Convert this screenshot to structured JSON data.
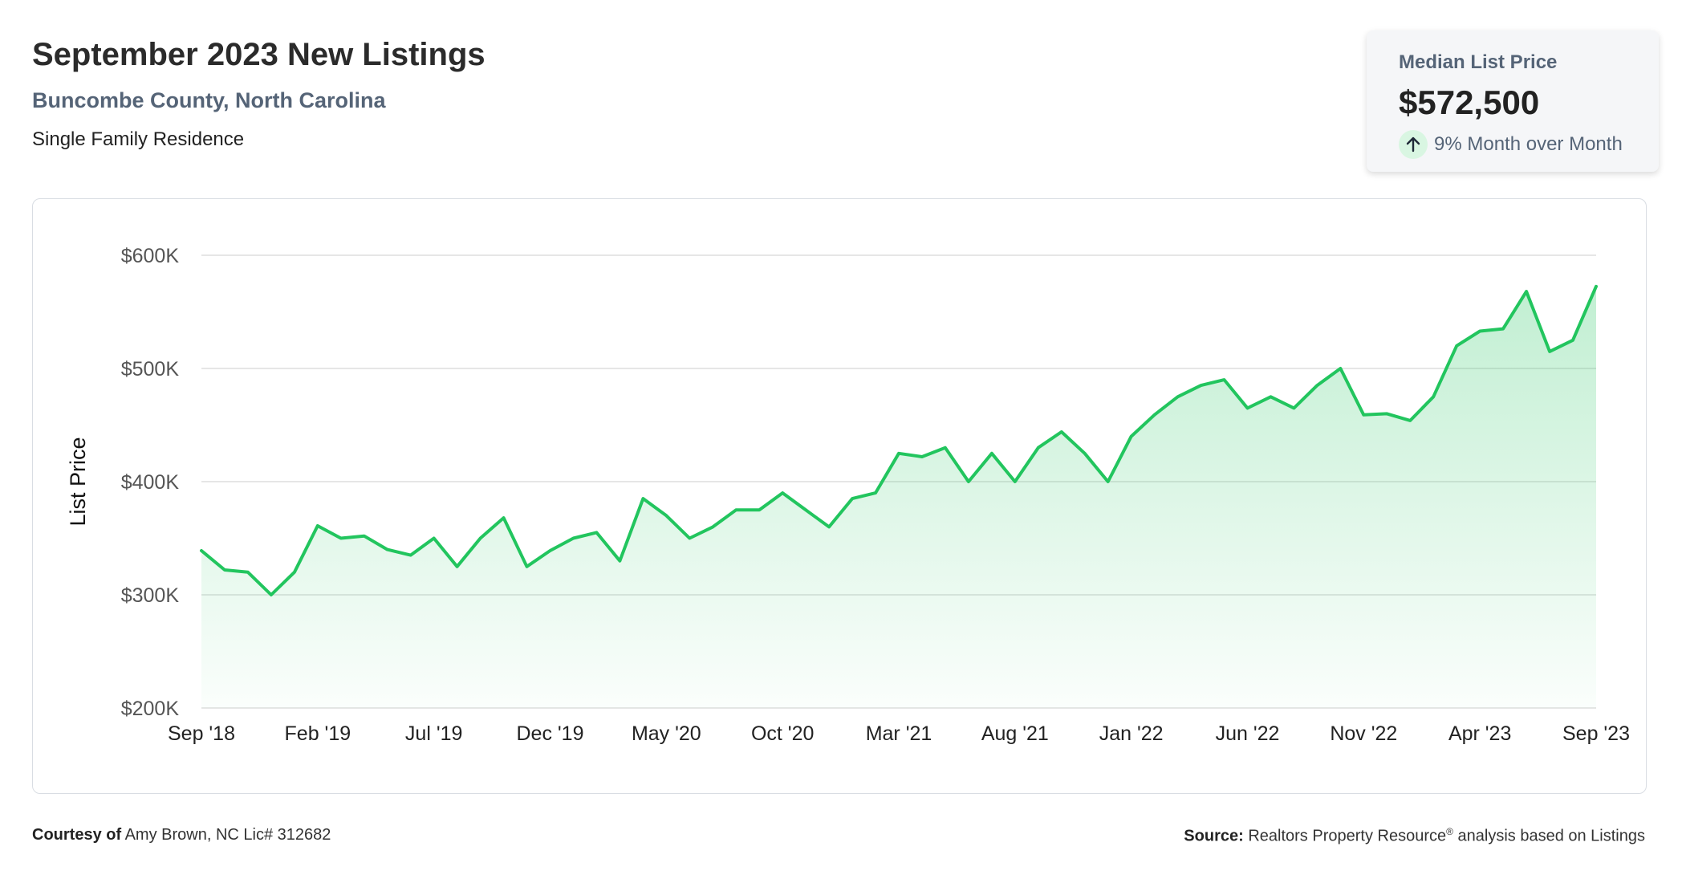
{
  "header": {
    "title": "September 2023 New Listings",
    "subtitle": "Buncombe County, North Carolina",
    "property_type": "Single Family Residence"
  },
  "kpi": {
    "label": "Median List Price",
    "value": "$572,500",
    "change": "9% Month over Month",
    "change_icon": "arrow-up-icon",
    "accent_color": "#22c55e"
  },
  "footer": {
    "courtesy_label": "Courtesy of",
    "courtesy_value": "Amy Brown, NC Lic# 312682",
    "source_label": "Source:",
    "source_value": "Realtors Property Resource",
    "source_mark": "®",
    "source_suffix": "analysis based on Listings"
  },
  "chart_data": {
    "type": "area",
    "title": "",
    "xlabel": "",
    "ylabel": "List Price",
    "ylim": [
      200000,
      600000
    ],
    "yticks": [
      200000,
      300000,
      400000,
      500000,
      600000
    ],
    "ytick_labels": [
      "$200K",
      "$300K",
      "$400K",
      "$500K",
      "$600K"
    ],
    "xtick_labels": [
      "Sep '18",
      "Feb '19",
      "Jul '19",
      "Dec '19",
      "May '20",
      "Oct '20",
      "Mar '21",
      "Aug '21",
      "Jan '22",
      "Jun '22",
      "Nov '22",
      "Apr '23",
      "Sep '23"
    ],
    "xtick_interval_months": 5,
    "grid": true,
    "line_color": "#22c55e",
    "x": [
      "Sep '18",
      "Oct '18",
      "Nov '18",
      "Dec '18",
      "Jan '19",
      "Feb '19",
      "Mar '19",
      "Apr '19",
      "May '19",
      "Jun '19",
      "Jul '19",
      "Aug '19",
      "Sep '19",
      "Oct '19",
      "Nov '19",
      "Dec '19",
      "Jan '20",
      "Feb '20",
      "Mar '20",
      "Apr '20",
      "May '20",
      "Jun '20",
      "Jul '20",
      "Aug '20",
      "Sep '20",
      "Oct '20",
      "Nov '20",
      "Dec '20",
      "Jan '21",
      "Feb '21",
      "Mar '21",
      "Apr '21",
      "May '21",
      "Jun '21",
      "Jul '21",
      "Aug '21",
      "Sep '21",
      "Oct '21",
      "Nov '21",
      "Dec '21",
      "Jan '22",
      "Feb '22",
      "Mar '22",
      "Apr '22",
      "May '22",
      "Jun '22",
      "Jul '22",
      "Aug '22",
      "Sep '22",
      "Oct '22",
      "Nov '22",
      "Dec '22",
      "Jan '23",
      "Feb '23",
      "Mar '23",
      "Apr '23",
      "May '23",
      "Jun '23",
      "Jul '23",
      "Aug '23",
      "Sep '23"
    ],
    "series": [
      {
        "values": [
          339000,
          322000,
          320000,
          300000,
          320000,
          361000,
          350000,
          352000,
          340000,
          335000,
          350000,
          325000,
          350000,
          368000,
          325000,
          339000,
          350000,
          355000,
          330000,
          385000,
          370000,
          350000,
          360000,
          375000,
          375000,
          390000,
          375000,
          360000,
          385000,
          390000,
          425000,
          422000,
          430000,
          400000,
          425000,
          400000,
          430000,
          444000,
          425000,
          400000,
          440000,
          459000,
          475000,
          485000,
          490000,
          465000,
          475000,
          465000,
          485000,
          500000,
          459000,
          460000,
          454000,
          475000,
          520000,
          533000,
          535000,
          568000,
          515000,
          525000,
          572500
        ]
      }
    ]
  }
}
